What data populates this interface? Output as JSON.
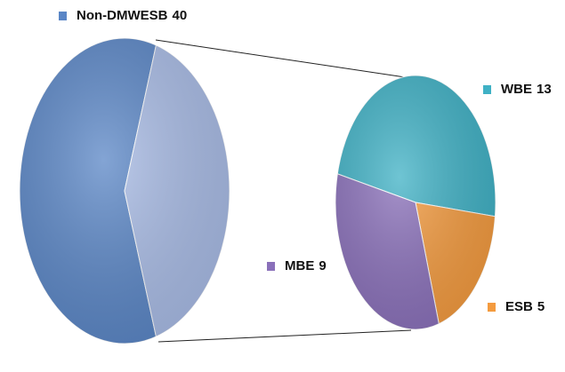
{
  "chart_data": {
    "type": "pie-of-pie",
    "categories": [
      "Non-DMWESB",
      "WBE",
      "ESB",
      "MBE"
    ],
    "values": [
      40,
      13,
      5,
      9
    ],
    "colors": [
      "#5a86c6",
      "#3fb1c5",
      "#f49b3f",
      "#8a70ba"
    ],
    "secondary_color": "#a9bce6",
    "split": [
      1,
      2,
      3
    ]
  }
}
